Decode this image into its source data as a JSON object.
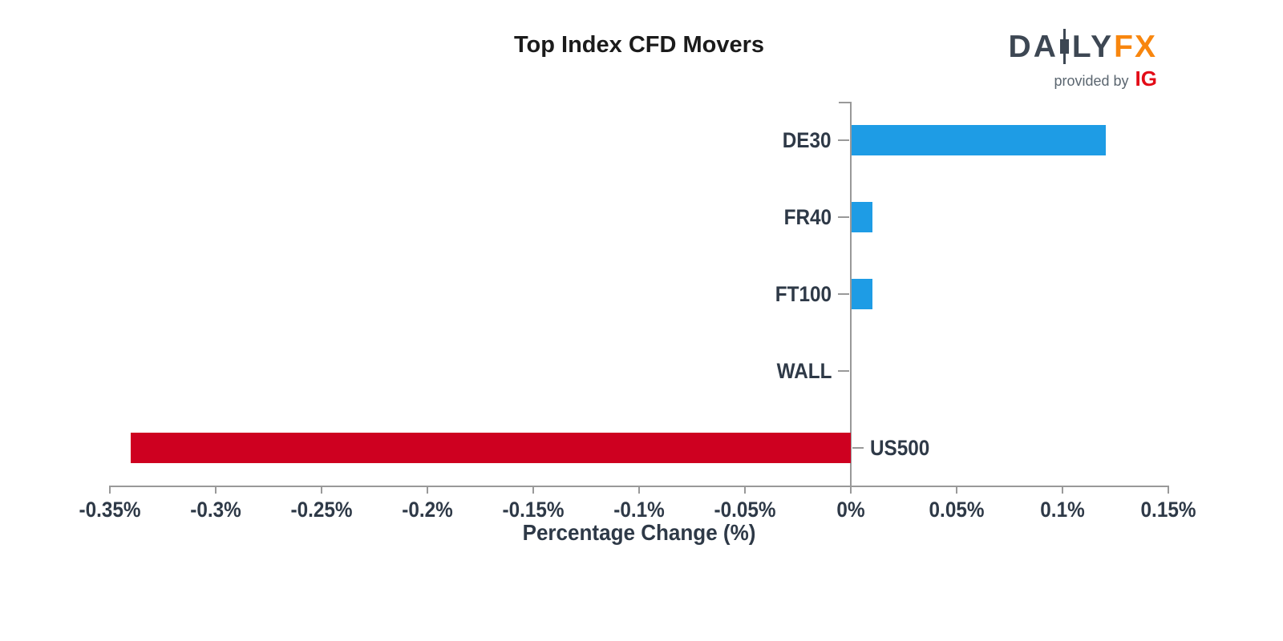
{
  "header": {
    "title": "Top Index CFD Movers"
  },
  "logo": {
    "text_left": "DA",
    "text_mid": "LY",
    "text_right": "FX",
    "candle_icon": "candlestick-icon",
    "provided_by": "provided by",
    "ig": "IG",
    "slate_color": "#3d4753",
    "orange_color": "#f8860e",
    "ig_color": "#e30b17"
  },
  "chart_data": {
    "type": "bar",
    "orientation": "horizontal",
    "title": "Top Index CFD Movers",
    "categories": [
      "DE30",
      "FR40",
      "FT100",
      "WALL",
      "US500"
    ],
    "values": [
      0.12,
      0.01,
      0.01,
      0,
      -0.34
    ],
    "xlabel": "Percentage Change (%)",
    "xlim": [
      -0.35,
      0.15
    ],
    "xticks": [
      -0.35,
      -0.3,
      -0.25,
      -0.2,
      -0.15,
      -0.1,
      -0.05,
      0,
      0.05,
      0.1,
      0.15
    ],
    "xtick_labels": [
      "-0.35%",
      "-0.3%",
      "-0.25%",
      "-0.2%",
      "-0.15%",
      "-0.1%",
      "-0.05%",
      "0%",
      "0.05%",
      "0.1%",
      "0.15%"
    ],
    "positive_color": "#1e9ce5",
    "negative_color": "#ce0020",
    "axis_color": "#999999",
    "label_color": "#2e3947",
    "grid": false,
    "legend": false
  }
}
